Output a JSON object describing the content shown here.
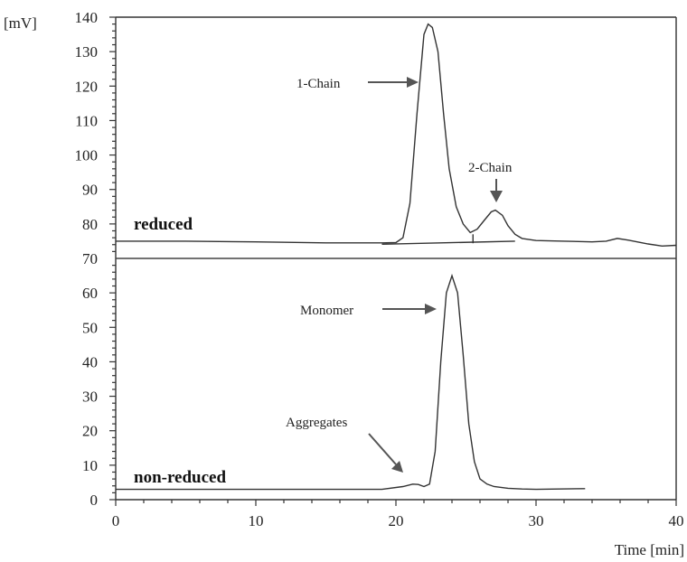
{
  "chart_data": [
    {
      "type": "line",
      "panel": "top",
      "ylabel": "[mV]",
      "ylim": [
        70,
        140
      ],
      "yticks": [
        "140",
        "130",
        "120",
        "110",
        "100",
        "90",
        "80",
        "70"
      ],
      "series_label": "reduced",
      "series": [
        {
          "x": [
            0,
            5,
            10,
            15,
            19,
            20,
            20.5,
            21,
            21.5,
            22,
            22.3,
            22.6,
            23,
            23.4,
            23.8,
            24.3,
            24.8,
            25.3,
            25.8,
            26.3,
            26.8,
            27.1,
            27.6,
            28,
            28.5,
            29,
            30,
            32,
            34,
            35,
            35.8,
            36.6,
            38,
            39,
            40
          ],
          "y": [
            75,
            75,
            74.8,
            74.5,
            74.5,
            74.6,
            76,
            86,
            112,
            135,
            138,
            137,
            130,
            112,
            96,
            85,
            80,
            77.5,
            78.5,
            81,
            83.5,
            84,
            82.5,
            79.5,
            77,
            75.8,
            75.2,
            75,
            74.8,
            75,
            75.8,
            75.3,
            74.2,
            73.6,
            73.8
          ]
        }
      ],
      "annotations": [
        {
          "text": "1-Chain",
          "x": 22.5,
          "y": 121
        },
        {
          "text": "2-Chain",
          "x": 27,
          "y": 84
        }
      ]
    },
    {
      "type": "line",
      "panel": "bottom",
      "xlabel": "Time [min]",
      "xlim": [
        0,
        40
      ],
      "xticks": [
        "0",
        "10",
        "20",
        "30",
        "40"
      ],
      "ylim": [
        0,
        70
      ],
      "yticks": [
        "70",
        "60",
        "50",
        "40",
        "30",
        "20",
        "10",
        "0"
      ],
      "series_label": "non-reduced",
      "series": [
        {
          "x": [
            0,
            10,
            19,
            20.5,
            21.2,
            21.6,
            22,
            22.4,
            22.8,
            23.2,
            23.6,
            24,
            24.4,
            24.8,
            25.2,
            25.6,
            26,
            26.5,
            27,
            28,
            29,
            30,
            33.5
          ],
          "y": [
            3,
            3,
            3,
            3.8,
            4.5,
            4.4,
            3.8,
            4.5,
            14,
            40,
            60,
            65,
            60,
            42,
            22,
            11,
            6,
            4.5,
            3.8,
            3.3,
            3.1,
            3,
            3.2
          ]
        }
      ],
      "annotations": [
        {
          "text": "Monomer",
          "x": 23.8,
          "y": 56
        },
        {
          "text": "Aggregates",
          "x": 20.8,
          "y": 4.5
        }
      ]
    }
  ]
}
